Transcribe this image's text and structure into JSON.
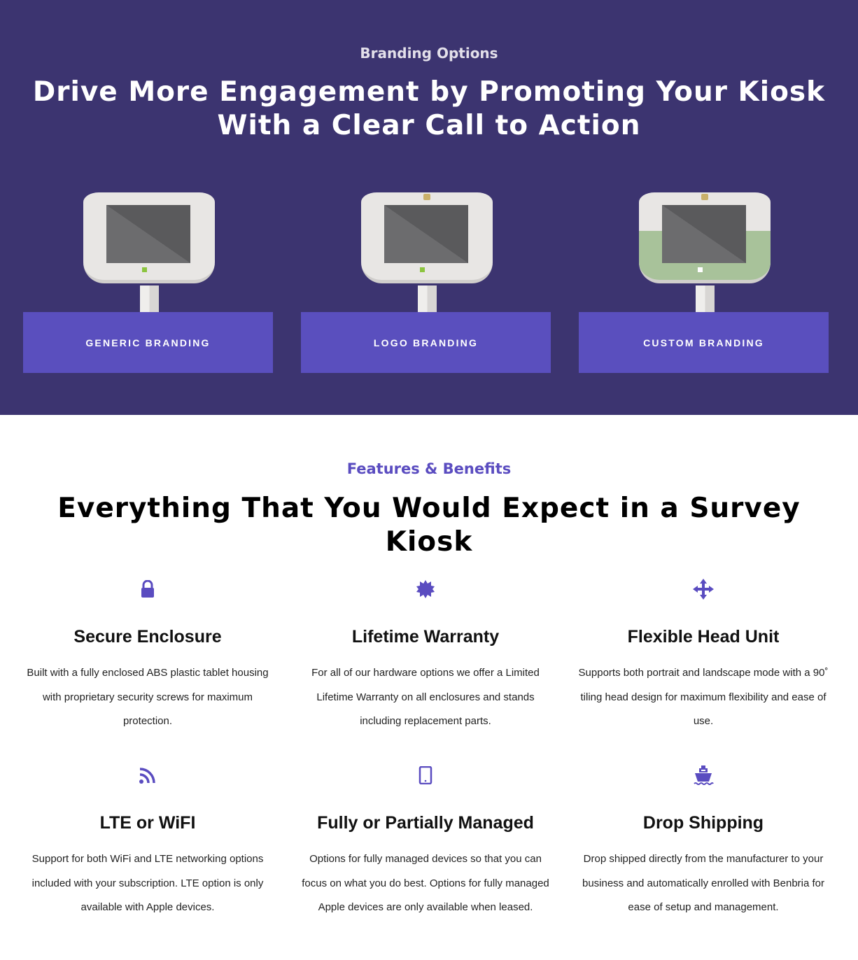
{
  "hero": {
    "eyebrow": "Branding Options",
    "title": "Drive More Engagement by Promoting Your Kiosk With a Clear Call to Action",
    "options": [
      {
        "label": "Generic Branding"
      },
      {
        "label": "Logo Branding"
      },
      {
        "label": "Custom Branding"
      }
    ]
  },
  "features": {
    "eyebrow": "Features & Benefits",
    "title": "Everything That You Would Expect in a Survey Kiosk",
    "items": [
      {
        "icon": "lock-icon",
        "title": "Secure Enclosure",
        "text": "Built with a fully enclosed ABS plastic tablet housing with proprietary security screws for maximum protection."
      },
      {
        "icon": "certificate-icon",
        "title": "Lifetime Warranty",
        "text": "For all of our hardware options we offer a Limited Lifetime Warranty on all enclosures and stands including replacement parts."
      },
      {
        "icon": "arrows-move-icon",
        "title": "Flexible Head Unit",
        "text": "Supports both portrait and landscape mode with a 90˚ tiling head design for maximum flexibility and ease of use."
      },
      {
        "icon": "rss-icon",
        "title": "LTE or WiFI",
        "text": "Support for both WiFi and LTE networking options included with your subscription. LTE option is only available with Apple devices."
      },
      {
        "icon": "tablet-icon",
        "title": "Fully or Partially Managed",
        "text": "Options for fully managed devices so that you can focus on what you do best. Options for fully managed Apple devices are only available when leased."
      },
      {
        "icon": "ship-icon",
        "title": "Drop Shipping",
        "text": "Drop shipped directly from the manufacturer to your business and automatically enrolled with Benbria for ease of setup and management."
      }
    ]
  },
  "colors": {
    "hero_bg": "#3c3470",
    "accent": "#5a4fbe"
  }
}
